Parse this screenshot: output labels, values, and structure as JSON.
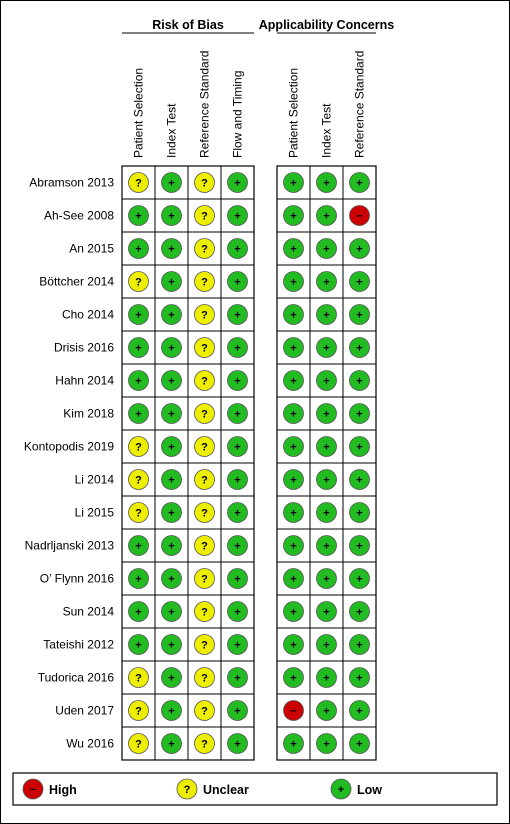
{
  "chart_data": {
    "type": "table",
    "groups": [
      {
        "title": "Risk of Bias",
        "domains": [
          "Patient Selection",
          "Index Test",
          "Reference Standard",
          "Flow and Timing"
        ]
      },
      {
        "title": "Applicability Concerns",
        "domains": [
          "Patient Selection",
          "Index Test",
          "Reference Standard"
        ]
      }
    ],
    "studies": [
      {
        "name": "Abramson 2013",
        "risk_of_bias": [
          "unclear",
          "low",
          "unclear",
          "low"
        ],
        "applicability": [
          "low",
          "low",
          "low"
        ]
      },
      {
        "name": "Ah-See 2008",
        "risk_of_bias": [
          "low",
          "low",
          "unclear",
          "low"
        ],
        "applicability": [
          "low",
          "low",
          "high"
        ]
      },
      {
        "name": "An 2015",
        "risk_of_bias": [
          "low",
          "low",
          "unclear",
          "low"
        ],
        "applicability": [
          "low",
          "low",
          "low"
        ]
      },
      {
        "name": "Böttcher 2014",
        "risk_of_bias": [
          "unclear",
          "low",
          "unclear",
          "low"
        ],
        "applicability": [
          "low",
          "low",
          "low"
        ]
      },
      {
        "name": "Cho 2014",
        "risk_of_bias": [
          "low",
          "low",
          "unclear",
          "low"
        ],
        "applicability": [
          "low",
          "low",
          "low"
        ]
      },
      {
        "name": "Drisis 2016",
        "risk_of_bias": [
          "low",
          "low",
          "unclear",
          "low"
        ],
        "applicability": [
          "low",
          "low",
          "low"
        ]
      },
      {
        "name": "Hahn 2014",
        "risk_of_bias": [
          "low",
          "low",
          "unclear",
          "low"
        ],
        "applicability": [
          "low",
          "low",
          "low"
        ]
      },
      {
        "name": "Kim 2018",
        "risk_of_bias": [
          "low",
          "low",
          "unclear",
          "low"
        ],
        "applicability": [
          "low",
          "low",
          "low"
        ]
      },
      {
        "name": "Kontopodis 2019",
        "risk_of_bias": [
          "unclear",
          "low",
          "unclear",
          "low"
        ],
        "applicability": [
          "low",
          "low",
          "low"
        ]
      },
      {
        "name": "Li 2014",
        "risk_of_bias": [
          "unclear",
          "low",
          "unclear",
          "low"
        ],
        "applicability": [
          "low",
          "low",
          "low"
        ]
      },
      {
        "name": "Li 2015",
        "risk_of_bias": [
          "unclear",
          "low",
          "unclear",
          "low"
        ],
        "applicability": [
          "low",
          "low",
          "low"
        ]
      },
      {
        "name": "Nadrljanski 2013",
        "risk_of_bias": [
          "low",
          "low",
          "unclear",
          "low"
        ],
        "applicability": [
          "low",
          "low",
          "low"
        ]
      },
      {
        "name": "O’ Flynn 2016",
        "risk_of_bias": [
          "low",
          "low",
          "unclear",
          "low"
        ],
        "applicability": [
          "low",
          "low",
          "low"
        ]
      },
      {
        "name": "Sun 2014",
        "risk_of_bias": [
          "low",
          "low",
          "unclear",
          "low"
        ],
        "applicability": [
          "low",
          "low",
          "low"
        ]
      },
      {
        "name": "Tateishi 2012",
        "risk_of_bias": [
          "low",
          "low",
          "unclear",
          "low"
        ],
        "applicability": [
          "low",
          "low",
          "low"
        ]
      },
      {
        "name": "Tudorica 2016",
        "risk_of_bias": [
          "unclear",
          "low",
          "unclear",
          "low"
        ],
        "applicability": [
          "low",
          "low",
          "low"
        ]
      },
      {
        "name": "Uden 2017",
        "risk_of_bias": [
          "unclear",
          "low",
          "unclear",
          "low"
        ],
        "applicability": [
          "high",
          "low",
          "low"
        ]
      },
      {
        "name": "Wu 2016",
        "risk_of_bias": [
          "unclear",
          "low",
          "unclear",
          "low"
        ],
        "applicability": [
          "low",
          "low",
          "low"
        ]
      }
    ],
    "legend": [
      {
        "level": "high",
        "label": "High",
        "symbol": "−",
        "color": "#cc0000"
      },
      {
        "level": "unclear",
        "label": "Unclear",
        "symbol": "?",
        "color": "#eeee00"
      },
      {
        "level": "low",
        "label": "Low",
        "symbol": "+",
        "color": "#22bb22"
      }
    ]
  }
}
